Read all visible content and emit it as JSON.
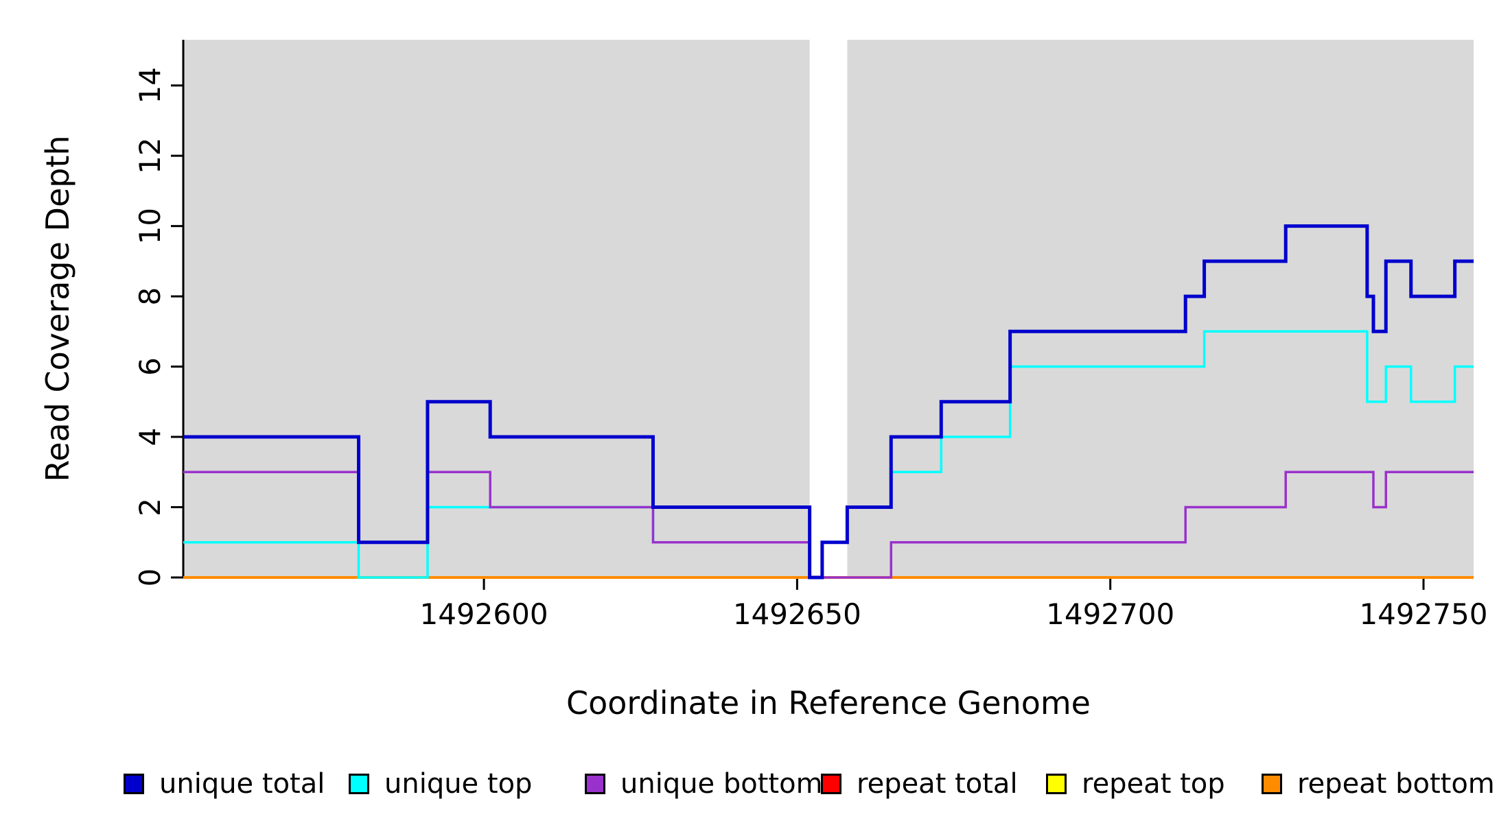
{
  "chart_data": {
    "type": "line",
    "subtype": "step",
    "title": "",
    "xlabel": "Coordinate in Reference Genome",
    "ylabel": "Read Coverage Depth",
    "xlim": [
      1492552,
      1492758
    ],
    "ylim": [
      0,
      15.3
    ],
    "xticks": [
      1492600,
      1492650,
      1492700,
      1492750
    ],
    "yticks": [
      0,
      2,
      4,
      6,
      8,
      10,
      12,
      14
    ],
    "grid": false,
    "background": "#ffffff",
    "plot_shading": {
      "color": "#d9d9d9",
      "regions": [
        [
          1492552,
          1492652
        ],
        [
          1492658,
          1492758
        ]
      ]
    },
    "series": [
      {
        "name": "repeat total",
        "color": "#ff0000",
        "lw": 4,
        "points": [
          [
            1492552,
            0
          ],
          [
            1492758,
            0
          ]
        ]
      },
      {
        "name": "repeat top",
        "color": "#ffff00",
        "lw": 4,
        "points": [
          [
            1492552,
            0
          ],
          [
            1492758,
            0
          ]
        ]
      },
      {
        "name": "repeat bottom",
        "color": "#ff8c00",
        "lw": 4,
        "points": [
          [
            1492552,
            0
          ],
          [
            1492758,
            0
          ]
        ]
      },
      {
        "name": "unique top",
        "color": "#00ffff",
        "lw": 3.5,
        "points": [
          [
            1492552,
            1
          ],
          [
            1492580,
            0
          ],
          [
            1492591,
            2
          ],
          [
            1492627,
            1
          ],
          [
            1492652,
            0
          ],
          [
            1492654,
            1
          ],
          [
            1492658,
            2
          ],
          [
            1492665,
            3
          ],
          [
            1492673,
            4
          ],
          [
            1492684,
            6
          ],
          [
            1492715,
            7
          ],
          [
            1492741,
            5
          ],
          [
            1492744,
            6
          ],
          [
            1492748,
            5
          ],
          [
            1492755,
            6
          ],
          [
            1492758,
            6
          ]
        ]
      },
      {
        "name": "unique bottom",
        "color": "#9932cc",
        "lw": 3.5,
        "points": [
          [
            1492552,
            3
          ],
          [
            1492580,
            1
          ],
          [
            1492591,
            3
          ],
          [
            1492601,
            2
          ],
          [
            1492627,
            1
          ],
          [
            1492652,
            0
          ],
          [
            1492665,
            1
          ],
          [
            1492712,
            2
          ],
          [
            1492728,
            3
          ],
          [
            1492742,
            2
          ],
          [
            1492744,
            3
          ],
          [
            1492758,
            3
          ]
        ]
      },
      {
        "name": "unique total",
        "color": "#0000cd",
        "lw": 5,
        "points": [
          [
            1492552,
            4
          ],
          [
            1492580,
            1
          ],
          [
            1492591,
            5
          ],
          [
            1492601,
            4
          ],
          [
            1492627,
            2
          ],
          [
            1492652,
            0
          ],
          [
            1492654,
            1
          ],
          [
            1492658,
            2
          ],
          [
            1492665,
            4
          ],
          [
            1492673,
            5
          ],
          [
            1492684,
            7
          ],
          [
            1492712,
            8
          ],
          [
            1492715,
            9
          ],
          [
            1492728,
            10
          ],
          [
            1492741,
            8
          ],
          [
            1492742,
            7
          ],
          [
            1492744,
            9
          ],
          [
            1492748,
            8
          ],
          [
            1492755,
            9
          ],
          [
            1492758,
            9
          ]
        ]
      }
    ],
    "legend": {
      "position": "bottom",
      "entries": [
        {
          "label": "unique total",
          "color": "#0000cd"
        },
        {
          "label": "unique top",
          "color": "#00ffff"
        },
        {
          "label": "unique bottom",
          "color": "#9932cc"
        },
        {
          "label": "repeat total",
          "color": "#ff0000"
        },
        {
          "label": "repeat top",
          "color": "#ffff00"
        },
        {
          "label": "repeat bottom",
          "color": "#ff8c00"
        }
      ]
    }
  }
}
